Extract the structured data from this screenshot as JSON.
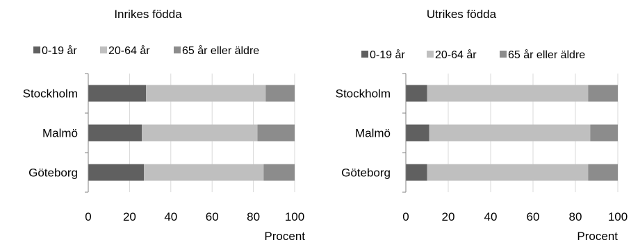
{
  "chart_data": [
    {
      "type": "bar",
      "orientation": "horizontal",
      "stacked": true,
      "title": "Inrikes födda",
      "xlabel": "Procent",
      "ylabel": "",
      "xlim": [
        0,
        100
      ],
      "xticks": [
        0,
        20,
        40,
        60,
        80,
        100
      ],
      "grid": true,
      "legend_position": "top",
      "categories": [
        "Stockholm",
        "Malmö",
        "Göteborg"
      ],
      "series": [
        {
          "name": "0-19 år",
          "color": "#606060",
          "values": [
            28,
            26,
            27
          ]
        },
        {
          "name": "20-64 år",
          "color": "#bfbfbf",
          "values": [
            58,
            56,
            58
          ]
        },
        {
          "name": "65 år eller äldre",
          "color": "#8c8c8c",
          "values": [
            14,
            18,
            15
          ]
        }
      ]
    },
    {
      "type": "bar",
      "orientation": "horizontal",
      "stacked": true,
      "title": "Utrikes födda",
      "xlabel": "Procent",
      "ylabel": "",
      "xlim": [
        0,
        100
      ],
      "xticks": [
        0,
        20,
        40,
        60,
        80,
        100
      ],
      "grid": true,
      "legend_position": "top",
      "categories": [
        "Stockholm",
        "Malmö",
        "Göteborg"
      ],
      "series": [
        {
          "name": "0-19 år",
          "color": "#606060",
          "values": [
            10,
            11,
            10
          ]
        },
        {
          "name": "20-64 år",
          "color": "#bfbfbf",
          "values": [
            76,
            76,
            76
          ]
        },
        {
          "name": "65 år eller äldre",
          "color": "#8c8c8c",
          "values": [
            14,
            13,
            14
          ]
        }
      ]
    }
  ]
}
